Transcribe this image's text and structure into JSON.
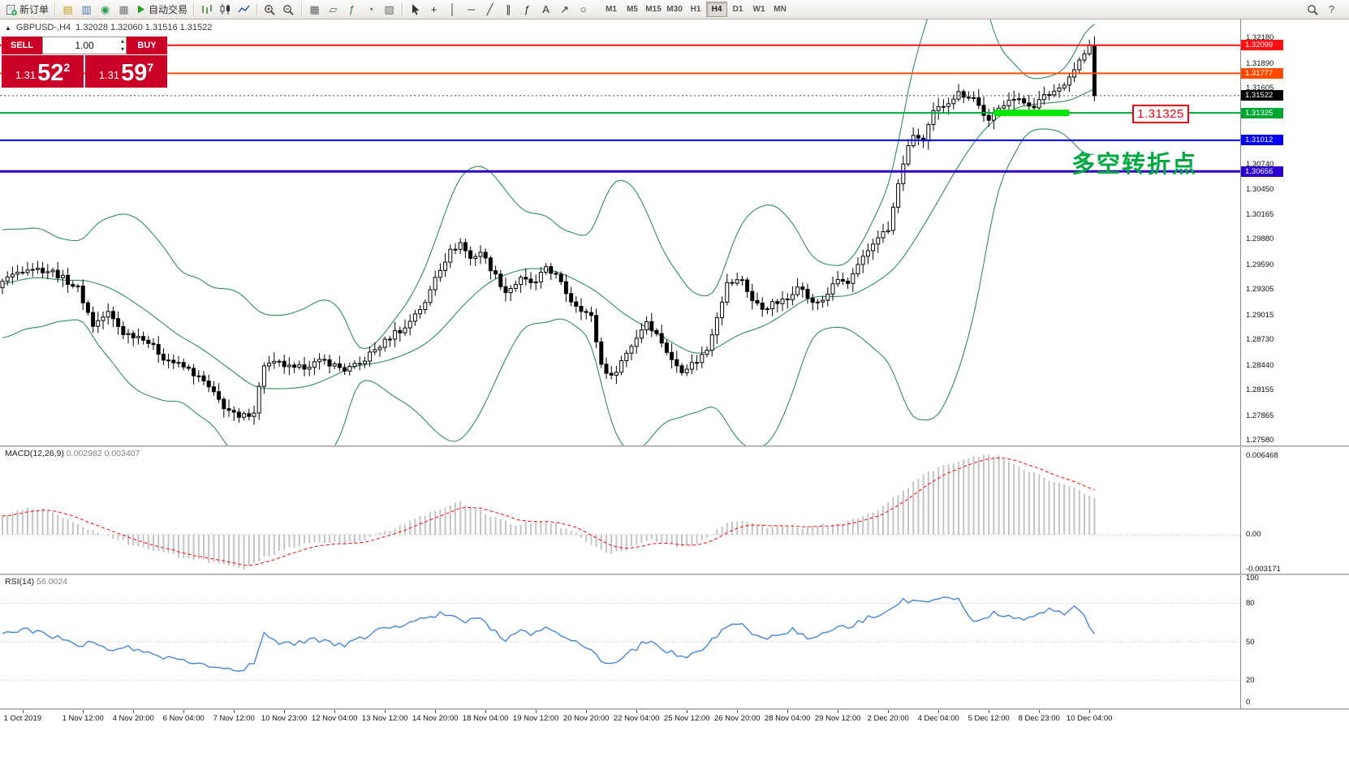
{
  "header": {
    "collapse_glyph": "▲",
    "symbol_period": "GBPUSD-,H4",
    "ohlc": "1.32028 1.32060 1.31516 1.31522"
  },
  "toolbar": {
    "buttons": [
      {
        "name": "new-order-button",
        "label": "新订单",
        "svg": "doc"
      },
      {
        "sep": true
      },
      {
        "name": "market-watch-icon",
        "glyph": "▤",
        "color": "#c79a1c"
      },
      {
        "name": "navigator-icon",
        "glyph": "▥",
        "color": "#4a78b4"
      },
      {
        "name": "alerts-icon",
        "glyph": "◉",
        "color": "#2c9a4b"
      },
      {
        "name": "chart-window-icon",
        "glyph": "▦",
        "color": "#777777"
      },
      {
        "name": "auto-trading-button",
        "label": "自动交易",
        "svg": "play"
      },
      {
        "sep": true
      },
      {
        "name": "bar-chart-icon",
        "svg": "bars"
      },
      {
        "name": "candlestick-chart-icon",
        "svg": "candles"
      },
      {
        "name": "line-chart-icon",
        "svg": "line"
      },
      {
        "sep": true
      },
      {
        "name": "zoom-in-icon",
        "svg": "zoomin"
      },
      {
        "name": "zoom-out-icon",
        "svg": "zoomout"
      },
      {
        "sep": true
      },
      {
        "name": "tile-windows-icon",
        "glyph": "▦",
        "color": "#666666"
      },
      {
        "name": "cascade-windows-icon",
        "glyph": "▱",
        "color": "#666666"
      },
      {
        "name": "indicators-icon",
        "glyph": "ƒ",
        "color": "#1f8a3a"
      },
      {
        "name": "periods-icon",
        "glyph": "◔",
        "color": "#555555"
      },
      {
        "name": "templates-icon",
        "glyph": "▨",
        "color": "#666666"
      },
      {
        "sep": true
      },
      {
        "name": "cursor-icon",
        "svg": "cursor"
      },
      {
        "name": "crosshair-icon",
        "glyph": "+",
        "color": "#333333"
      },
      {
        "name": "vertical-line-icon",
        "glyph": "│",
        "color": "#333333"
      },
      {
        "name": "horizontal-line-icon",
        "glyph": "─",
        "color": "#333333"
      },
      {
        "name": "trendline-icon",
        "glyph": "╱",
        "color": "#333333"
      },
      {
        "name": "channel-icon",
        "glyph": "∥",
        "color": "#333333"
      },
      {
        "name": "fibonacci-icon",
        "glyph": "ƒ",
        "color": "#333333"
      },
      {
        "name": "text-label-icon",
        "glyph": "A",
        "color": "#333333"
      },
      {
        "name": "arrow-objects-icon",
        "glyph": "↗",
        "color": "#333333"
      },
      {
        "name": "shapes-icon",
        "glyph": "○",
        "color": "#333333"
      }
    ],
    "timeframes": [
      "M1",
      "M5",
      "M15",
      "M30",
      "H1",
      "H4",
      "D1",
      "W1",
      "MN"
    ],
    "active_timeframe": "H4",
    "right_icons": [
      {
        "name": "search-icon",
        "svg": "search"
      },
      {
        "name": "help-icon",
        "glyph": "?",
        "color": "#555555"
      }
    ]
  },
  "quote_panel": {
    "sell_label": "SELL",
    "buy_label": "BUY",
    "volume": "1.00",
    "spinner_up": "▴",
    "spinner_down": "▾",
    "sell_price_small": "1.31",
    "sell_price_big": "52",
    "sell_price_sup": "2",
    "buy_price_small": "1.31",
    "buy_price_big": "59",
    "buy_price_sup": "7"
  },
  "annotations": {
    "price_label": "1.31325",
    "turning_point": "多空转折点"
  },
  "indicators": {
    "macd": {
      "label": "MACD(12,26,9)",
      "values": "0.002982 0.003407"
    },
    "rsi": {
      "label": "RSI(14)",
      "value": "56.0024"
    }
  },
  "chart_data": [
    {
      "type": "candlestick",
      "title": "GBPUSD-,H4",
      "timeframe": "H4",
      "n_candles": 218,
      "last_price": 1.31522,
      "ylim": [
        1.27524,
        1.32393
      ],
      "close_keypoints": [
        [
          0,
          1.2942
        ],
        [
          5,
          1.2956
        ],
        [
          10,
          1.2951
        ],
        [
          15,
          1.2932
        ],
        [
          18,
          1.289
        ],
        [
          21,
          1.2904
        ],
        [
          24,
          1.2881
        ],
        [
          28,
          1.2876
        ],
        [
          32,
          1.2853
        ],
        [
          37,
          1.2839
        ],
        [
          40,
          1.2825
        ],
        [
          44,
          1.2797
        ],
        [
          47,
          1.2783
        ],
        [
          50,
          1.2792
        ],
        [
          52,
          1.2845
        ],
        [
          55,
          1.2846
        ],
        [
          58,
          1.2839
        ],
        [
          61,
          1.2845
        ],
        [
          64,
          1.2849
        ],
        [
          68,
          1.2839
        ],
        [
          71,
          1.2845
        ],
        [
          73,
          1.2857
        ],
        [
          76,
          1.2871
        ],
        [
          78,
          1.2882
        ],
        [
          80,
          1.2886
        ],
        [
          82,
          1.2904
        ],
        [
          84,
          1.2914
        ],
        [
          86,
          1.2946
        ],
        [
          89,
          1.2974
        ],
        [
          91,
          1.2984
        ],
        [
          93,
          1.2966
        ],
        [
          95,
          1.2974
        ],
        [
          98,
          1.2946
        ],
        [
          100,
          1.2928
        ],
        [
          103,
          1.2942
        ],
        [
          106,
          1.2937
        ],
        [
          108,
          1.2957
        ],
        [
          110,
          1.2946
        ],
        [
          113,
          1.2918
        ],
        [
          115,
          1.2909
        ],
        [
          117,
          1.2899
        ],
        [
          119,
          1.2845
        ],
        [
          121,
          1.283
        ],
        [
          123,
          1.2849
        ],
        [
          126,
          1.2876
        ],
        [
          128,
          1.2895
        ],
        [
          131,
          1.2871
        ],
        [
          133,
          1.2849
        ],
        [
          135,
          1.2839
        ],
        [
          138,
          1.2849
        ],
        [
          140,
          1.2862
        ],
        [
          142,
          1.2901
        ],
        [
          144,
          1.2937
        ],
        [
          147,
          1.2942
        ],
        [
          149,
          1.2918
        ],
        [
          151,
          1.2909
        ],
        [
          153,
          1.2914
        ],
        [
          156,
          1.2919
        ],
        [
          158,
          1.2937
        ],
        [
          161,
          1.2914
        ],
        [
          163,
          1.2919
        ],
        [
          166,
          1.2942
        ],
        [
          168,
          1.2937
        ],
        [
          171,
          1.2966
        ],
        [
          174,
          1.2992
        ],
        [
          176,
          1.2998
        ],
        [
          179,
          1.3076
        ],
        [
          181,
          1.3108
        ],
        [
          183,
          1.3099
        ],
        [
          185,
          1.3133
        ],
        [
          188,
          1.3146
        ],
        [
          190,
          1.3155
        ],
        [
          193,
          1.315
        ],
        [
          196,
          1.3122
        ],
        [
          198,
          1.3137
        ],
        [
          200,
          1.315
        ],
        [
          202,
          1.3146
        ],
        [
          205,
          1.3141
        ],
        [
          207,
          1.3151
        ],
        [
          210,
          1.3161
        ],
        [
          212,
          1.3174
        ],
        [
          214,
          1.3192
        ],
        [
          216,
          1.3208
        ],
        [
          217,
          1.31522
        ]
      ],
      "bollinger": {
        "period": 20,
        "deviation": 2,
        "color": "#2f8e5a"
      },
      "y_axis_ticks": [
        "1.32180",
        "1.31890",
        "1.31605",
        "1.31315",
        "1.31030",
        "1.30740",
        "1.30450",
        "1.30165",
        "1.29880",
        "1.29590",
        "1.29305",
        "1.29015",
        "1.28730",
        "1.28440",
        "1.28155",
        "1.27865",
        "1.27580"
      ],
      "hlines": [
        {
          "price": 1.32099,
          "color": "#ff0f0f",
          "width": 2,
          "label": "1.32099"
        },
        {
          "price": 1.31777,
          "color": "#ff4a00",
          "width": 2,
          "label": "1.31777"
        },
        {
          "price": 1.31522,
          "color": "#444444",
          "width": 1,
          "label": "1.31522",
          "style": "dashed",
          "label_bg": "#000000"
        },
        {
          "price": 1.31325,
          "color": "#00a832",
          "width": 2,
          "label": "1.31325"
        },
        {
          "price": 1.31012,
          "color": "#0202f0",
          "width": 2,
          "label": "1.31012"
        },
        {
          "price": 1.30656,
          "color": "#2b00cc",
          "width": 3,
          "label": "1.30656"
        }
      ],
      "highlight": {
        "price": 1.31325,
        "from_candle": 197,
        "to_candle": 212,
        "color": "#00e600",
        "thickness": 8
      }
    },
    {
      "type": "bar",
      "name": "MACD",
      "params": "(12,26,9)",
      "last_main": 0.002982,
      "last_signal": 0.003407,
      "ylim": [
        -0.00317,
        0.00713
      ],
      "axis_ticks": [
        "0.006468",
        "0.00",
        "-0.003171"
      ],
      "keypoints": [
        [
          0,
          0.0015
        ],
        [
          5,
          0.0023
        ],
        [
          10,
          0.0019
        ],
        [
          15,
          0.0008
        ],
        [
          20,
          0.0001
        ],
        [
          24,
          -0.0006
        ],
        [
          28,
          -0.0011
        ],
        [
          32,
          -0.0015
        ],
        [
          37,
          -0.0019
        ],
        [
          42,
          -0.0023
        ],
        [
          48,
          -0.0029
        ],
        [
          52,
          -0.0019
        ],
        [
          56,
          -0.0012
        ],
        [
          60,
          -0.0008
        ],
        [
          64,
          -0.0006
        ],
        [
          68,
          -0.0007
        ],
        [
          72,
          -0.0004
        ],
        [
          76,
          0.0002
        ],
        [
          80,
          0.0009
        ],
        [
          84,
          0.0016
        ],
        [
          88,
          0.0023
        ],
        [
          91,
          0.0026
        ],
        [
          94,
          0.0022
        ],
        [
          98,
          0.0013
        ],
        [
          102,
          0.0008
        ],
        [
          105,
          0.001
        ],
        [
          108,
          0.0012
        ],
        [
          112,
          0.0005
        ],
        [
          115,
          -0.0002
        ],
        [
          118,
          -0.0011
        ],
        [
          121,
          -0.0016
        ],
        [
          125,
          -0.001
        ],
        [
          128,
          -0.0004
        ],
        [
          131,
          -0.0007
        ],
        [
          135,
          -0.0011
        ],
        [
          138,
          -0.0008
        ],
        [
          141,
          0.0
        ],
        [
          144,
          0.0009
        ],
        [
          147,
          0.0011
        ],
        [
          150,
          0.0008
        ],
        [
          154,
          0.0006
        ],
        [
          158,
          0.0006
        ],
        [
          162,
          0.0007
        ],
        [
          166,
          0.0009
        ],
        [
          170,
          0.0013
        ],
        [
          174,
          0.0019
        ],
        [
          179,
          0.0036
        ],
        [
          183,
          0.0049
        ],
        [
          187,
          0.0056
        ],
        [
          191,
          0.0061
        ],
        [
          195,
          0.00647
        ],
        [
          199,
          0.0062
        ],
        [
          203,
          0.0054
        ],
        [
          207,
          0.0046
        ],
        [
          211,
          0.004
        ],
        [
          214,
          0.0036
        ],
        [
          217,
          0.002982
        ]
      ]
    },
    {
      "type": "line",
      "name": "RSI",
      "params": "(14)",
      "last_value": 56.0024,
      "ylim": [
        0,
        100
      ],
      "levels": [
        80,
        50,
        20
      ],
      "axis_ticks": [
        "100",
        "80",
        "50",
        "20",
        "0"
      ],
      "keypoints": [
        [
          0,
          55
        ],
        [
          4,
          60
        ],
        [
          8,
          56
        ],
        [
          12,
          52
        ],
        [
          15,
          45
        ],
        [
          18,
          50
        ],
        [
          21,
          44
        ],
        [
          24,
          47
        ],
        [
          28,
          42
        ],
        [
          32,
          38
        ],
        [
          36,
          36
        ],
        [
          40,
          33
        ],
        [
          44,
          30
        ],
        [
          47,
          28
        ],
        [
          50,
          33
        ],
        [
          52,
          56
        ],
        [
          55,
          50
        ],
        [
          58,
          48
        ],
        [
          61,
          52
        ],
        [
          64,
          50
        ],
        [
          68,
          47
        ],
        [
          71,
          52
        ],
        [
          74,
          58
        ],
        [
          78,
          62
        ],
        [
          81,
          65
        ],
        [
          84,
          68
        ],
        [
          87,
          72
        ],
        [
          90,
          70
        ],
        [
          92,
          65
        ],
        [
          95,
          68
        ],
        [
          98,
          58
        ],
        [
          100,
          52
        ],
        [
          103,
          58
        ],
        [
          106,
          56
        ],
        [
          108,
          62
        ],
        [
          110,
          58
        ],
        [
          113,
          50
        ],
        [
          115,
          48
        ],
        [
          117,
          45
        ],
        [
          119,
          36
        ],
        [
          121,
          33
        ],
        [
          124,
          40
        ],
        [
          127,
          48
        ],
        [
          129,
          52
        ],
        [
          131,
          45
        ],
        [
          134,
          40
        ],
        [
          136,
          38
        ],
        [
          139,
          45
        ],
        [
          142,
          55
        ],
        [
          144,
          62
        ],
        [
          147,
          63
        ],
        [
          149,
          55
        ],
        [
          151,
          52
        ],
        [
          154,
          55
        ],
        [
          157,
          60
        ],
        [
          160,
          53
        ],
        [
          163,
          55
        ],
        [
          166,
          62
        ],
        [
          168,
          60
        ],
        [
          171,
          67
        ],
        [
          174,
          72
        ],
        [
          177,
          78
        ],
        [
          179,
          82
        ],
        [
          182,
          80
        ],
        [
          185,
          82
        ],
        [
          187,
          84
        ],
        [
          190,
          82
        ],
        [
          192,
          70
        ],
        [
          194,
          65
        ],
        [
          197,
          72
        ],
        [
          200,
          70
        ],
        [
          202,
          68
        ],
        [
          205,
          70
        ],
        [
          208,
          75
        ],
        [
          211,
          72
        ],
        [
          213,
          76
        ],
        [
          215,
          70
        ],
        [
          217,
          57
        ]
      ]
    }
  ],
  "time_axis": {
    "labels": [
      [
        "1 Oct 2019",
        4
      ],
      [
        "1 Nov 12:00",
        16
      ],
      [
        "4 Nov 20:00",
        26
      ],
      [
        "6 Nov 04:00",
        36
      ],
      [
        "7 Nov 12:00",
        46
      ],
      [
        "10 Nov 23:00",
        56
      ],
      [
        "12 Nov 04:00",
        66
      ],
      [
        "13 Nov 12:00",
        76
      ],
      [
        "14 Nov 20:00",
        86
      ],
      [
        "18 Nov 04:00",
        96
      ],
      [
        "19 Nov 12:00",
        106
      ],
      [
        "20 Nov 20:00",
        116
      ],
      [
        "22 Nov 04:00",
        126
      ],
      [
        "25 Nov 12:00",
        136
      ],
      [
        "26 Nov 20:00",
        146
      ],
      [
        "28 Nov 04:00",
        156
      ],
      [
        "29 Nov 12:00",
        166
      ],
      [
        "2 Dec 20:00",
        176
      ],
      [
        "4 Dec 04:00",
        186
      ],
      [
        "5 Dec 12:00",
        196
      ],
      [
        "8 Dec 23:00",
        206
      ],
      [
        "10 Dec 04:00",
        216
      ]
    ]
  }
}
